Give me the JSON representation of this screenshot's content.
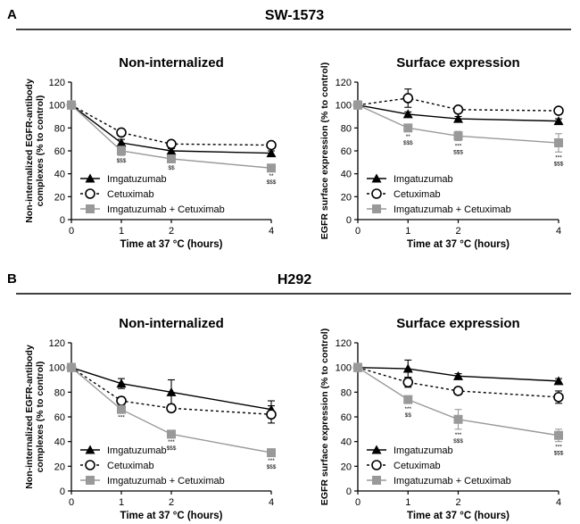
{
  "panels": [
    {
      "letter": "A",
      "title": "SW-1573"
    },
    {
      "letter": "B",
      "title": "H292"
    }
  ],
  "colors": {
    "imga": "#000000",
    "cetux": "#000000",
    "combo": "#999999",
    "axis": "#000000"
  },
  "chart_data": [
    {
      "type": "line",
      "panel": "A",
      "title": "Non-internalized",
      "xlabel": "Time at 37 °C (hours)",
      "ylabel": [
        "Non-internalized EGFR-antibody",
        "complexes (% to control)"
      ],
      "xlim": [
        0,
        4
      ],
      "ylim": [
        0,
        120
      ],
      "xticks": [
        "0",
        "1",
        "2",
        "4"
      ],
      "yticks": [
        "0",
        "20",
        "40",
        "60",
        "80",
        "100",
        "120"
      ],
      "legend": [
        "Imgatuzumab",
        "Cetuximab",
        "Imgatuzumab + Cetuximab"
      ],
      "x": [
        0,
        1,
        2,
        4
      ],
      "series": [
        {
          "name": "Imgatuzumab",
          "values": [
            100,
            67,
            60,
            58
          ],
          "errors": [
            0,
            3,
            2,
            2
          ]
        },
        {
          "name": "Cetuximab",
          "values": [
            100,
            76,
            66,
            65
          ],
          "errors": [
            0,
            3,
            2,
            2
          ]
        },
        {
          "name": "Imgatuzumab + Cetuximab",
          "values": [
            100,
            60,
            53,
            45
          ],
          "errors": [
            0,
            4,
            3,
            2
          ]
        }
      ],
      "sig": [
        {
          "x": 1,
          "lines": [
            "$$$"
          ]
        },
        {
          "x": 2,
          "lines": [
            "$$"
          ]
        },
        {
          "x": 4,
          "lines": [
            "**",
            "$$$"
          ]
        }
      ]
    },
    {
      "type": "line",
      "panel": "A",
      "title": "Surface expression",
      "xlabel": "Time at 37 °C (hours)",
      "ylabel": [
        "EGFR surface expression (% to control)"
      ],
      "xlim": [
        0,
        4
      ],
      "ylim": [
        0,
        120
      ],
      "xticks": [
        "0",
        "1",
        "2",
        "4"
      ],
      "yticks": [
        "0",
        "20",
        "40",
        "60",
        "80",
        "100",
        "120"
      ],
      "legend": [
        "Imgatuzumab",
        "Cetuximab",
        "Imgatuzumab + Cetuximab"
      ],
      "x": [
        0,
        1,
        2,
        4
      ],
      "series": [
        {
          "name": "Imgatuzumab",
          "values": [
            100,
            92,
            88,
            86
          ],
          "errors": [
            0,
            2,
            2,
            2
          ]
        },
        {
          "name": "Cetuximab",
          "values": [
            100,
            106,
            96,
            95
          ],
          "errors": [
            0,
            8,
            2,
            2
          ]
        },
        {
          "name": "Imgatuzumab + Cetuximab",
          "values": [
            100,
            80,
            73,
            67
          ],
          "errors": [
            0,
            3,
            4,
            8
          ]
        }
      ],
      "sig": [
        {
          "x": 1,
          "lines": [
            "**",
            "$$$"
          ]
        },
        {
          "x": 2,
          "lines": [
            "***",
            "$$$"
          ]
        },
        {
          "x": 4,
          "lines": [
            "***",
            "$$$"
          ]
        }
      ]
    },
    {
      "type": "line",
      "panel": "B",
      "title": "Non-internalized",
      "xlabel": "Time at 37 °C (hours)",
      "ylabel": [
        "Non-internalized EGFR-antibody",
        "complexes (% to control)"
      ],
      "xlim": [
        0,
        4
      ],
      "ylim": [
        0,
        120
      ],
      "xticks": [
        "0",
        "1",
        "2",
        "4"
      ],
      "yticks": [
        "0",
        "20",
        "40",
        "60",
        "80",
        "100",
        "120"
      ],
      "legend": [
        "Imgatuzumab",
        "Cetuximab",
        "Imgatuzumab + Cetuximab"
      ],
      "x": [
        0,
        1,
        2,
        4
      ],
      "series": [
        {
          "name": "Imgatuzumab",
          "values": [
            100,
            87,
            80,
            66
          ],
          "errors": [
            0,
            4,
            10,
            7
          ]
        },
        {
          "name": "Cetuximab",
          "values": [
            100,
            73,
            67,
            62
          ],
          "errors": [
            0,
            3,
            3,
            7
          ]
        },
        {
          "name": "Imgatuzumab + Cetuximab",
          "values": [
            100,
            66,
            46,
            31
          ],
          "errors": [
            0,
            2,
            2,
            2
          ]
        }
      ],
      "sig": [
        {
          "x": 1,
          "lines": [
            "***"
          ]
        },
        {
          "x": 2,
          "lines": [
            "***",
            "$$$"
          ]
        },
        {
          "x": 4,
          "lines": [
            "***",
            "$$$"
          ]
        }
      ]
    },
    {
      "type": "line",
      "panel": "B",
      "title": "Surface expression",
      "xlabel": "Time at 37 °C (hours)",
      "ylabel": [
        "EGFR surface expression (% to control)"
      ],
      "xlim": [
        0,
        4
      ],
      "ylim": [
        0,
        120
      ],
      "xticks": [
        "0",
        "1",
        "2",
        "4"
      ],
      "yticks": [
        "0",
        "20",
        "40",
        "60",
        "80",
        "100",
        "120"
      ],
      "legend": [
        "Imgatuzumab",
        "Cetuximab",
        "Imgatuzumab + Cetuximab"
      ],
      "x": [
        0,
        1,
        2,
        4
      ],
      "series": [
        {
          "name": "Imgatuzumab",
          "values": [
            100,
            99,
            93,
            89
          ],
          "errors": [
            0,
            7,
            2,
            2
          ]
        },
        {
          "name": "Cetuximab",
          "values": [
            100,
            88,
            81,
            76
          ],
          "errors": [
            0,
            4,
            3,
            5
          ]
        },
        {
          "name": "Imgatuzumab + Cetuximab",
          "values": [
            100,
            74,
            58,
            45
          ],
          "errors": [
            0,
            3,
            8,
            5
          ]
        }
      ],
      "sig": [
        {
          "x": 1,
          "lines": [
            "***",
            "$$"
          ]
        },
        {
          "x": 2,
          "lines": [
            "***",
            "$$$"
          ]
        },
        {
          "x": 4,
          "lines": [
            "***",
            "$$$"
          ]
        }
      ]
    }
  ]
}
